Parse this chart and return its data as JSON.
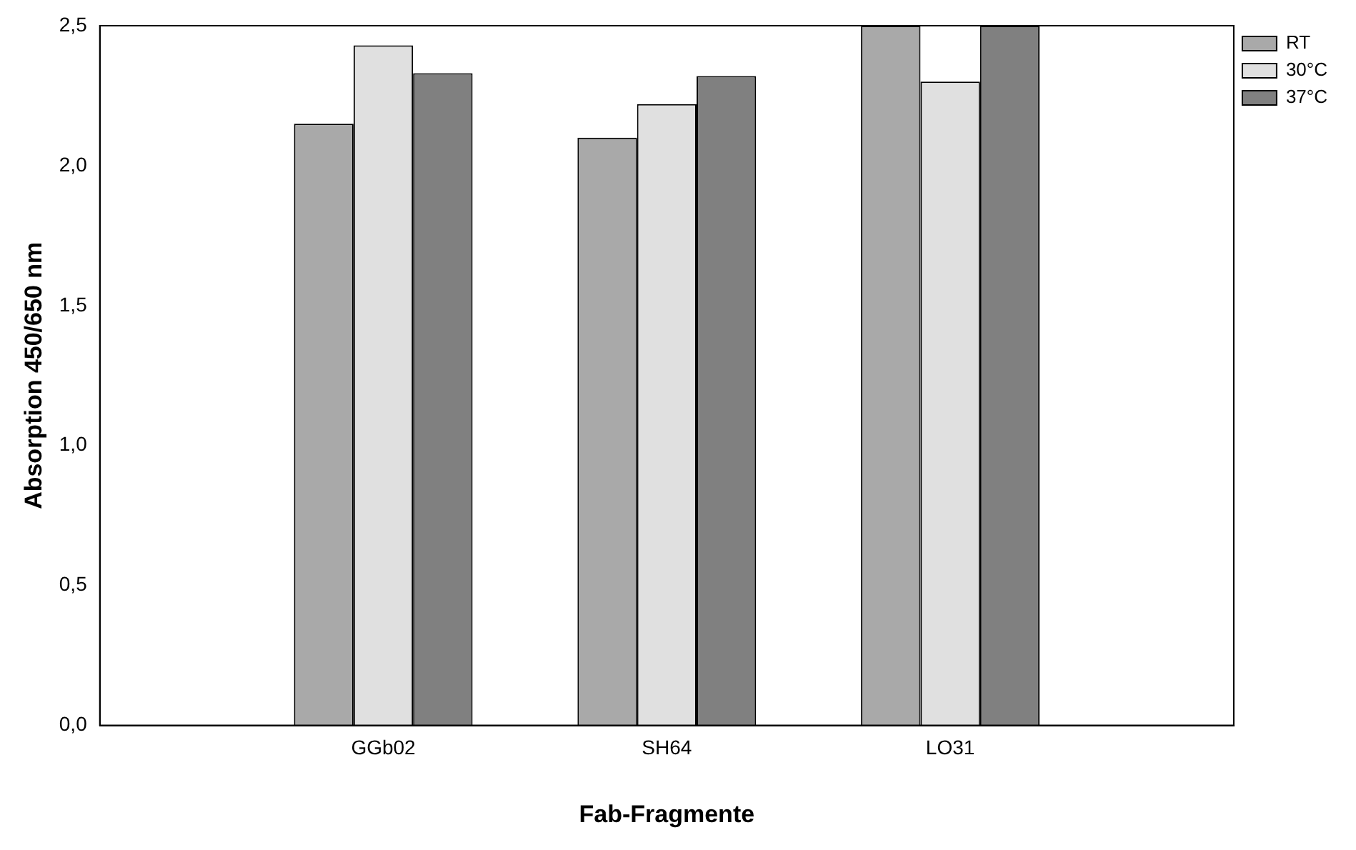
{
  "chart_data": {
    "type": "bar",
    "xlabel": "Fab-Fragmente",
    "ylabel": "Absorption 450/650 nm",
    "categories": [
      null,
      "GGb02",
      "SH64",
      "LO31",
      null
    ],
    "series": [
      {
        "name": "RT",
        "color": "#a9a9a9",
        "values": [
          null,
          2.15,
          2.1,
          2.5,
          null
        ]
      },
      {
        "name": "30°C",
        "color": "#e0e0e0",
        "values": [
          null,
          2.43,
          2.22,
          2.3,
          null
        ]
      },
      {
        "name": "37°C",
        "color": "#808080",
        "values": [
          null,
          2.33,
          2.32,
          2.5,
          null
        ]
      }
    ],
    "ylim": [
      0,
      2.5
    ],
    "yticks": [
      {
        "value": 0,
        "label": "0,0"
      },
      {
        "value": 0.5,
        "label": "0,5"
      },
      {
        "value": 1,
        "label": "1,0"
      },
      {
        "value": 1.5,
        "label": "1,5"
      },
      {
        "value": 2,
        "label": "2,0"
      },
      {
        "value": 2.5,
        "label": "2,5"
      }
    ],
    "grid": false,
    "legend": "top right"
  }
}
